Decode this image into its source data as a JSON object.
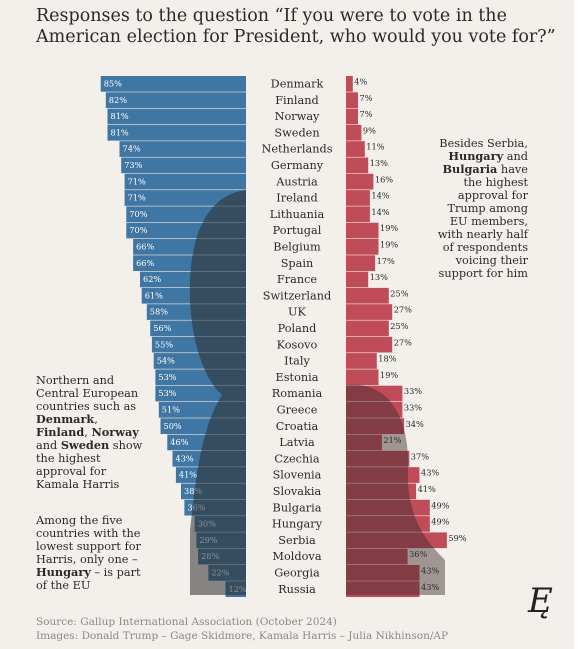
{
  "title": "Responses to the question “If you were to vote in the American election for President, who would you vote for?”",
  "colors": {
    "harris": "#3f76a3",
    "trump": "#c04c59",
    "background": "#f3efea",
    "text": "#2a2a2a",
    "source_text": "#8a8a8a"
  },
  "notes": {
    "left_top": [
      {
        "t": "Northern and Central European countries such as ",
        "b": false
      },
      {
        "t": "Denmark",
        "b": true
      },
      {
        "t": ", ",
        "b": false
      },
      {
        "t": "Finland",
        "b": true
      },
      {
        "t": ", ",
        "b": false
      },
      {
        "t": "Norway",
        "b": true
      },
      {
        "t": " and ",
        "b": false
      },
      {
        "t": "Sweden",
        "b": true
      },
      {
        "t": " show the highest approval for Kamala Harris",
        "b": false
      }
    ],
    "left_bottom": [
      {
        "t": "Among the five countries with the lowest support for Harris, only one – ",
        "b": false
      },
      {
        "t": "Hungary",
        "b": true
      },
      {
        "t": " – is part of the EU",
        "b": false
      }
    ],
    "right": [
      {
        "t": "Besides Serbia, ",
        "b": false
      },
      {
        "t": "Hungary",
        "b": true
      },
      {
        "t": " and ",
        "b": false
      },
      {
        "t": "Bulgaria",
        "b": true
      },
      {
        "t": " have the highest approval for Trump among EU members, with nearly half of respondents voicing their support for him",
        "b": false
      }
    ]
  },
  "source": {
    "line1": "Source: Gallup International Association (October 2024)",
    "line2": "Images: Donald Trump – Gage Skidmore, Kamala Harris – Julia Nikhinson/AP"
  },
  "logo": "Ę",
  "chart_data": {
    "type": "bar",
    "categories": [
      "Denmark",
      "Finland",
      "Norway",
      "Sweden",
      "Netherlands",
      "Germany",
      "Austria",
      "Ireland",
      "Lithuania",
      "Portugal",
      "Belgium",
      "Spain",
      "France",
      "Switzerland",
      "UK",
      "Poland",
      "Kosovo",
      "Italy",
      "Estonia",
      "Romania",
      "Greece",
      "Croatia",
      "Latvia",
      "Czechia",
      "Slovenia",
      "Slovakia",
      "Bulgaria",
      "Hungary",
      "Serbia",
      "Moldova",
      "Georgia",
      "Russia"
    ],
    "series": [
      {
        "values": [
          85,
          82,
          81,
          81,
          74,
          73,
          71,
          71,
          70,
          70,
          66,
          66,
          62,
          61,
          58,
          56,
          55,
          54,
          53,
          53,
          51,
          50,
          46,
          43,
          41,
          38,
          36,
          30,
          29,
          28,
          22,
          12
        ]
      },
      {
        "values": [
          4,
          7,
          7,
          9,
          11,
          13,
          16,
          14,
          14,
          19,
          19,
          17,
          13,
          25,
          27,
          25,
          27,
          18,
          19,
          33,
          33,
          34,
          21,
          37,
          43,
          41,
          49,
          49,
          59,
          36,
          43,
          43
        ]
      }
    ],
    "value_format": "%",
    "title": "",
    "xlabel": "",
    "ylabel": "",
    "grid": false,
    "legend": "none"
  }
}
